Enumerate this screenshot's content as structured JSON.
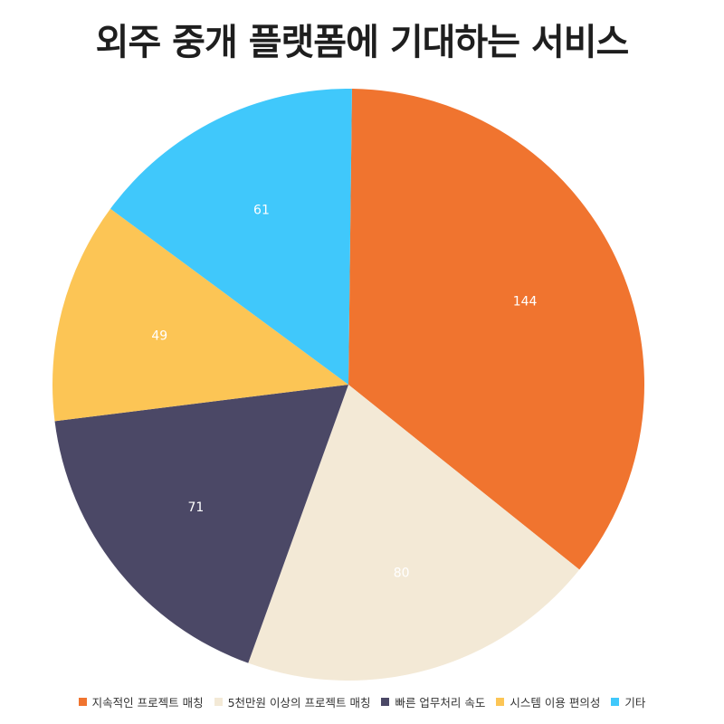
{
  "chart_data": {
    "type": "pie",
    "title": "외주 중개 플랫폼에 기대하는 서비스",
    "categories": [
      "지속적인 프로젝트 매칭",
      "5천만원 이상의 프로젝트 매칭",
      "빠른 업무처리 속도",
      "시스템 이용 편의성",
      "기타"
    ],
    "values": [
      144,
      80,
      71,
      49,
      61
    ],
    "colors": [
      "#F0742F",
      "#F3E9D6",
      "#4B4866",
      "#FCC555",
      "#40C8FB"
    ],
    "label_colors": [
      "#ffffff",
      "#ffffff",
      "#ffffff",
      "#ffffff",
      "#ffffff"
    ],
    "legend_position": "bottom"
  }
}
